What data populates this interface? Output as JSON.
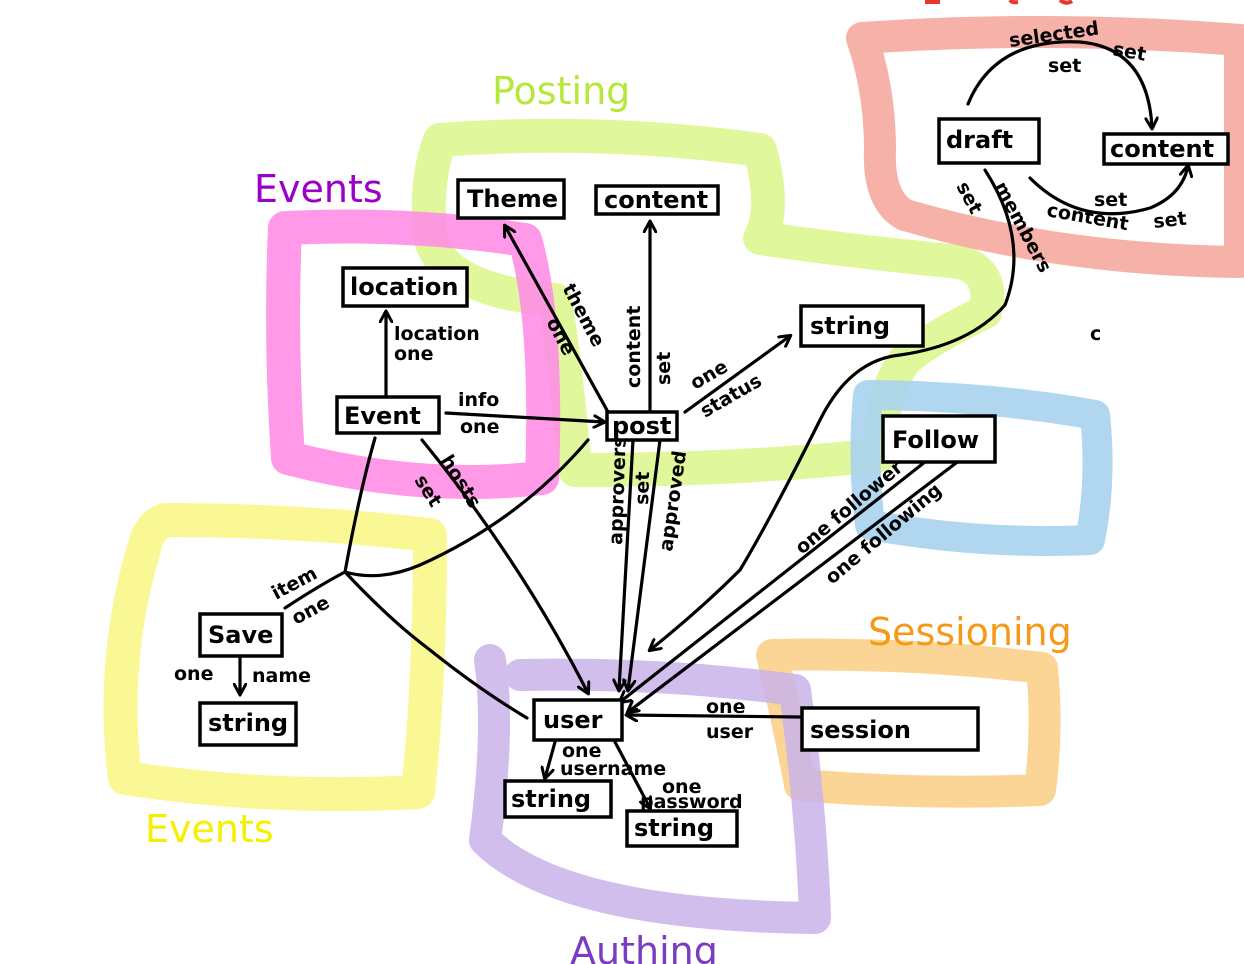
{
  "colors": {
    "posting": "#d6f57a",
    "posting_title": "#b5e83a",
    "events_pink": "#ff8ee6",
    "events_pink_title": "#9b00c8",
    "events_yellow": "#faf78a",
    "events_yellow_title": "#f5f000",
    "following": "#a8d1ee",
    "sessioning": "#fbd08a",
    "sessioning_title": "#f59a18",
    "authing": "#c9b3ea",
    "authing_title": "#7a3cc0",
    "drafting": "#f4a59a",
    "drafting_title": "#e8382a"
  },
  "groups": {
    "posting": "Posting",
    "events_top": "Events",
    "events_bottom": "Events",
    "sessioning": "Sessioning",
    "authing": "Authing"
  },
  "nodes": {
    "theme": "Theme",
    "content_posting": "content",
    "string_status": "string",
    "location": "location",
    "event": "Event",
    "post": "post",
    "follow": "Follow",
    "save": "Save",
    "string_name": "string",
    "user": "user",
    "string_username": "string",
    "string_password": "string",
    "session": "session",
    "draft": "draft",
    "content_draft": "content"
  },
  "edges": {
    "location_l1": "location",
    "location_l2": "one",
    "info_l1": "info",
    "info_l2": "one",
    "theme_l1": "theme",
    "theme_l2": "one",
    "content_l1": "content",
    "content_l2": "set",
    "status_l1": "one",
    "status_l2": "status",
    "hosts_l1": "hosts",
    "hosts_l2": "set",
    "approvers": "approvers",
    "approved_set": "set",
    "approved": "approved",
    "follower": "one follower",
    "following": "one following",
    "item": "item",
    "item_one": "one",
    "name_one": "one",
    "name": "name",
    "session_l1": "one",
    "session_l2": "user",
    "username_l1": "one",
    "username_l2": "username",
    "password_l1": "one",
    "password_l2": "password",
    "selected_l1": "selected",
    "selected_l2": "set",
    "selected_l3": "set",
    "draft_content_l1": "set",
    "draft_content_l2": "content",
    "draft_content_l3": "set",
    "members_set": "set",
    "members": "members"
  },
  "stray_mark": "c"
}
